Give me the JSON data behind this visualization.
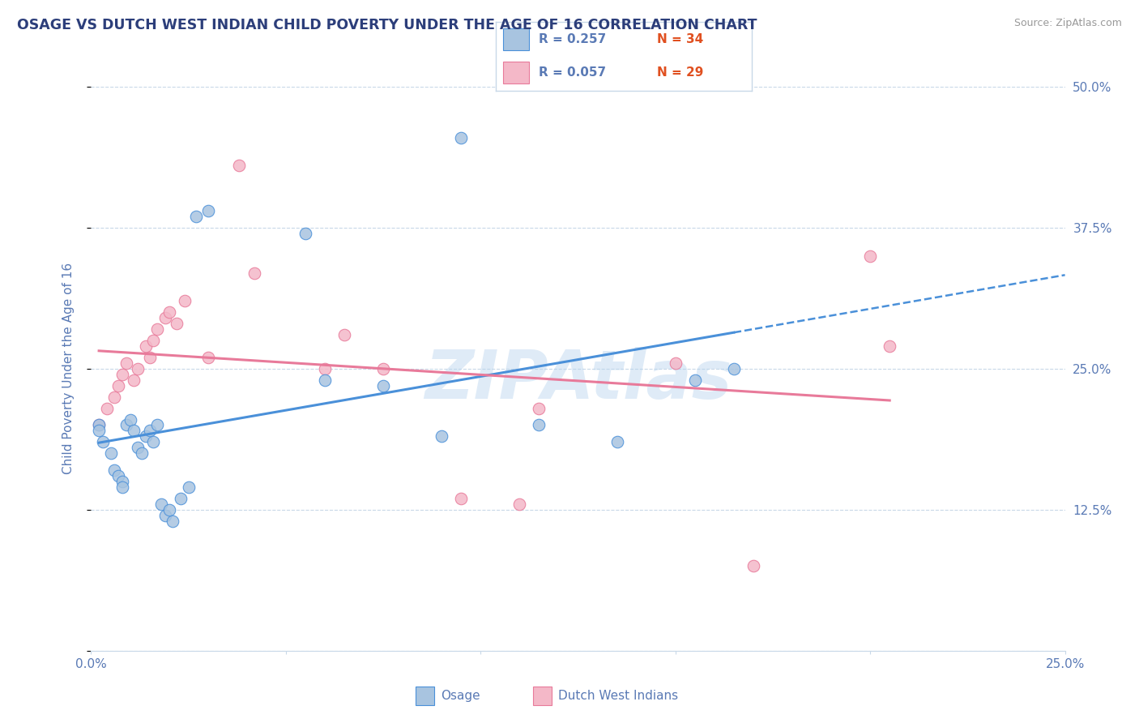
{
  "title": "OSAGE VS DUTCH WEST INDIAN CHILD POVERTY UNDER THE AGE OF 16 CORRELATION CHART",
  "source": "Source: ZipAtlas.com",
  "ylabel": "Child Poverty Under the Age of 16",
  "xlim": [
    0.0,
    0.25
  ],
  "ylim": [
    0.0,
    0.5
  ],
  "xticks": [
    0.0,
    0.05,
    0.1,
    0.15,
    0.2,
    0.25
  ],
  "yticks": [
    0.0,
    0.125,
    0.25,
    0.375,
    0.5
  ],
  "xticklabels": [
    "0.0%",
    "",
    "",
    "",
    "",
    "25.0%"
  ],
  "right_yticklabels": [
    "",
    "12.5%",
    "25.0%",
    "37.5%",
    "50.0%"
  ],
  "legend_r1": "R = 0.257",
  "legend_n1": "N = 34",
  "legend_r2": "R = 0.057",
  "legend_n2": "N = 29",
  "osage_color": "#a8c4e0",
  "dutch_color": "#f4b8c8",
  "osage_line_color": "#4a90d9",
  "dutch_line_color": "#e87a9a",
  "watermark": "ZIPAtlas",
  "watermark_color": "#b8d4ee",
  "grid_color": "#c8d8e8",
  "title_color": "#2c3e7a",
  "axis_color": "#5a7ab5",
  "n_color": "#e05020",
  "osage_x": [
    0.002,
    0.002,
    0.003,
    0.005,
    0.006,
    0.007,
    0.008,
    0.008,
    0.009,
    0.01,
    0.011,
    0.012,
    0.013,
    0.014,
    0.015,
    0.016,
    0.017,
    0.018,
    0.019,
    0.02,
    0.021,
    0.023,
    0.025,
    0.027,
    0.03,
    0.055,
    0.06,
    0.075,
    0.09,
    0.095,
    0.115,
    0.135,
    0.155,
    0.165
  ],
  "osage_y": [
    0.2,
    0.195,
    0.185,
    0.175,
    0.16,
    0.155,
    0.15,
    0.145,
    0.2,
    0.205,
    0.195,
    0.18,
    0.175,
    0.19,
    0.195,
    0.185,
    0.2,
    0.13,
    0.12,
    0.125,
    0.115,
    0.135,
    0.145,
    0.385,
    0.39,
    0.37,
    0.24,
    0.235,
    0.19,
    0.455,
    0.2,
    0.185,
    0.24,
    0.25
  ],
  "dutch_x": [
    0.002,
    0.004,
    0.006,
    0.007,
    0.008,
    0.009,
    0.011,
    0.012,
    0.014,
    0.015,
    0.016,
    0.017,
    0.019,
    0.02,
    0.022,
    0.024,
    0.03,
    0.038,
    0.042,
    0.06,
    0.065,
    0.075,
    0.095,
    0.11,
    0.115,
    0.15,
    0.17,
    0.2,
    0.205
  ],
  "dutch_y": [
    0.2,
    0.215,
    0.225,
    0.235,
    0.245,
    0.255,
    0.24,
    0.25,
    0.27,
    0.26,
    0.275,
    0.285,
    0.295,
    0.3,
    0.29,
    0.31,
    0.26,
    0.43,
    0.335,
    0.25,
    0.28,
    0.25,
    0.135,
    0.13,
    0.215,
    0.255,
    0.075,
    0.35,
    0.27
  ],
  "background_color": "#ffffff",
  "plot_bg_color": "#ffffff"
}
